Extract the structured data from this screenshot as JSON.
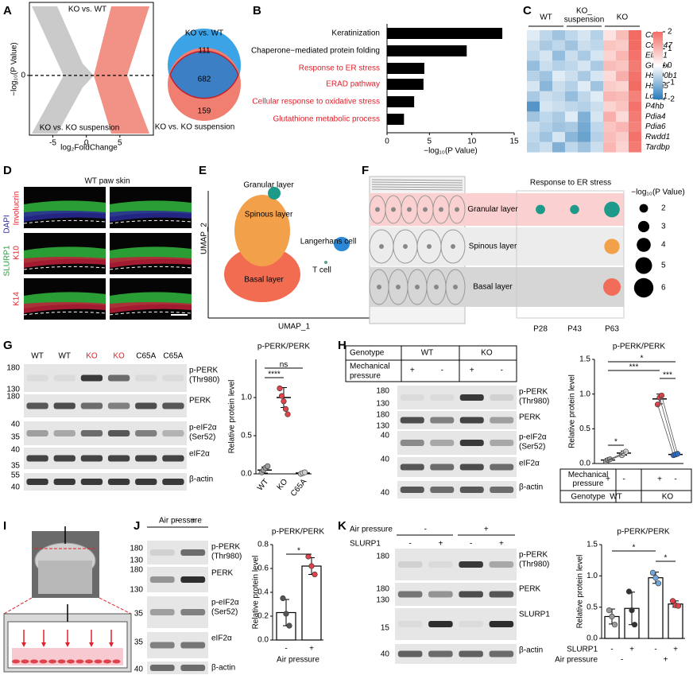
{
  "A": {
    "letter": "A",
    "volcano": {
      "type": "scatter",
      "title": "KO vs. WT",
      "subtitle": "KO vs. KO suspension",
      "x_label": "log₂FoldChange",
      "y_label": "−log₁₀(P Value)",
      "xlim": [
        -8.5,
        10
      ],
      "xticks": [
        -5,
        0,
        5
      ],
      "ylim": [
        -4.5,
        5.5
      ],
      "yticks": [
        0
      ],
      "colors": [
        "#bdbdbd",
        "#f07f72"
      ]
    },
    "venn": {
      "sets": [
        "KO vs. WT",
        "KO vs. KO suspension"
      ],
      "counts": [
        111,
        682,
        159
      ],
      "colors": [
        "#3ba3e6",
        "#f07f72",
        "#3d7fc4"
      ]
    }
  },
  "B": {
    "letter": "B",
    "chart": {
      "type": "bar",
      "categories": [
        "Keratinization",
        "Chaperone−mediated protein folding",
        "Response to ER stress",
        "ERAD pathway",
        "Cellular response to oxidative stress",
        "Glutathione metabolic process"
      ],
      "values": [
        13.6,
        9.4,
        4.4,
        4.3,
        3.2,
        2.0
      ],
      "label_colors": [
        "#000000",
        "#000000",
        "#e0202a",
        "#e0202a",
        "#e0202a",
        "#e0202a"
      ],
      "color": "#000000",
      "xlim": [
        0,
        15
      ],
      "xticks": [
        0,
        5,
        10,
        15
      ],
      "x_label": "−log₁₀(P Value)"
    }
  },
  "C": {
    "letter": "C",
    "heatmap": {
      "groups": [
        [
          "WT"
        ],
        [
          "KO_",
          "suspension"
        ],
        [
          "KO"
        ]
      ],
      "rows": [
        "Calr",
        "Ccdc47",
        "Eif2s1",
        "G6pdx",
        "Hsp90b1",
        "Hspa5",
        "Lonp1",
        "P4hb",
        "Pdia4",
        "Pdia6",
        "Rwdd1",
        "Tardbp"
      ],
      "values": [
        [
          -0.3,
          -0.6,
          -0.9,
          -0.6,
          -0.4,
          -0.7,
          0.4,
          0.9,
          2.0
        ],
        [
          -0.5,
          -0.8,
          -0.6,
          -0.9,
          -0.5,
          -0.6,
          0.8,
          0.7,
          2.0
        ],
        [
          -0.6,
          -0.4,
          -1.0,
          -0.5,
          -0.8,
          -0.4,
          0.6,
          1.0,
          1.9
        ],
        [
          -1.0,
          -0.5,
          -0.7,
          -0.6,
          -0.4,
          -0.8,
          0.9,
          0.8,
          1.8
        ],
        [
          -0.7,
          -0.9,
          -0.3,
          -0.5,
          -0.8,
          -0.4,
          0.5,
          1.1,
          1.9
        ],
        [
          -0.4,
          -1.1,
          -0.5,
          -0.7,
          -0.3,
          -0.9,
          0.7,
          0.6,
          2.0
        ],
        [
          -0.8,
          -0.5,
          -0.6,
          -1.0,
          -0.6,
          -0.3,
          1.0,
          0.9,
          1.7
        ],
        [
          -1.6,
          -0.4,
          -0.5,
          -0.6,
          -0.7,
          -0.5,
          0.6,
          0.8,
          1.9
        ],
        [
          -0.9,
          -0.6,
          -0.8,
          -0.3,
          -1.2,
          -0.4,
          1.1,
          0.5,
          1.8
        ],
        [
          -0.5,
          -0.7,
          -0.9,
          -0.8,
          -1.3,
          -0.6,
          0.8,
          1.0,
          1.7
        ],
        [
          -0.6,
          -0.9,
          -0.4,
          -1.1,
          -1.4,
          -0.7,
          0.9,
          0.7,
          1.9
        ],
        [
          -0.7,
          -0.5,
          -1.2,
          -0.6,
          -0.9,
          -0.5,
          1.0,
          0.6,
          1.8
        ]
      ],
      "colorbar": {
        "ticks": [
          2,
          1,
          0,
          -1,
          -2
        ],
        "colors": [
          "#2b7bba",
          "#ffffff",
          "#f26c64"
        ]
      }
    }
  },
  "D": {
    "letter": "D",
    "title": "WT paw skin",
    "stains": [
      "Involucrin",
      "K10",
      "K14"
    ],
    "channels": [
      "SLURP1",
      "DAPI"
    ]
  },
  "E": {
    "letter": "E",
    "clusters": [
      "Granular layer",
      "Spinous layer",
      "Langerhans cell",
      "T cell",
      "Basal layer"
    ],
    "x_label": "UMAP_1",
    "y_label": "UMAP_2"
  },
  "F": {
    "letter": "F",
    "chart": {
      "type": "dot",
      "title": "Response to ER stress",
      "rows": [
        "Granular layer",
        "Spinous layer",
        "Basal layer"
      ],
      "columns": [
        "P28",
        "P43",
        "P63"
      ],
      "values": [
        [
          2.3,
          2.2,
          4.6
        ],
        [
          null,
          null,
          4.5
        ],
        [
          null,
          null,
          5.3
        ]
      ],
      "row_colors": [
        "#1d9a8a",
        "#f2a04a",
        "#f26c5a"
      ],
      "size_legend": {
        "title": "−log₁₀(P Value)",
        "values": [
          2,
          3,
          4,
          5,
          6
        ]
      }
    }
  },
  "G": {
    "letter": "G",
    "blot": {
      "lanes": [
        "WT",
        "WT",
        "KO",
        "KO",
        "C65A",
        "C65A"
      ],
      "lane_colors": [
        "#000000",
        "#000000",
        "#e0202a",
        "#e0202a",
        "#000000",
        "#000000"
      ],
      "rows": [
        {
          "markers": [
            180,
            130
          ],
          "label": [
            "p-PERK",
            "(Thr980)"
          ]
        },
        {
          "markers": [
            180
          ],
          "label": [
            "PERK"
          ]
        },
        {
          "markers": [
            40,
            35
          ],
          "label": [
            "p-eIF2α",
            "(Ser52)"
          ]
        },
        {
          "markers": [
            40,
            35
          ],
          "label": [
            "eIF2α"
          ]
        },
        {
          "markers": [
            55,
            40
          ],
          "label": [
            "β-actin"
          ]
        }
      ]
    },
    "chart": {
      "type": "dot",
      "title": "p-PERK/PERK",
      "y_label": "Relative protein level",
      "ylim": [
        0,
        1.5
      ],
      "yticks": [
        {
          "value": 0,
          "label": "0.0"
        },
        0.5,
        {
          "value": 1,
          "label": "1.0"
        }
      ],
      "categories": [
        "WT",
        "KO",
        "C65A"
      ],
      "groups": [
        {
          "points": [
            0.02,
            0.05,
            0.08,
            0.1
          ],
          "mean": 0.05,
          "sd": 0.04,
          "color": "#9e9e9e"
        },
        {
          "points": [
            1.12,
            1.02,
            0.95,
            0.85,
            0.78
          ],
          "mean": 1.0,
          "sd": 0.13,
          "color": "#e0424a"
        },
        {
          "points": [
            0.0,
            0.01,
            0.02
          ],
          "mean": 0.01,
          "sd": 0.01,
          "color": "#cfcfcf"
        }
      ],
      "significance": [
        "ns",
        "****"
      ]
    }
  },
  "H": {
    "letter": "H",
    "blot": {
      "table": [
        {
          "label": [
            "Genotype"
          ],
          "cells": [
            "WT",
            "KO"
          ]
        },
        {
          "label": [
            "Mechanical",
            "pressure"
          ],
          "cells": [
            "+",
            "-",
            "+",
            "-"
          ]
        }
      ],
      "rows": [
        {
          "markers": [
            180,
            130
          ],
          "label": [
            "p-PERK",
            "(Thr980)"
          ]
        },
        {
          "markers": [
            180,
            130
          ],
          "label": [
            "PERK"
          ]
        },
        {
          "markers": [
            40
          ],
          "label": [
            "p-eIF2α",
            "(Ser52)"
          ]
        },
        {
          "markers": [
            40
          ],
          "label": [
            "eIF2α"
          ]
        },
        {
          "markers": [
            40
          ],
          "label": [
            "β-actin"
          ]
        }
      ]
    },
    "chart": {
      "type": "dot",
      "title": "p-PERK/PERK",
      "y_label": "Relative protein level",
      "ylim": [
        0,
        1.5
      ],
      "yticks": [
        {
          "value": 0,
          "label": "0.0"
        },
        0.5,
        {
          "value": 1,
          "label": "1.0"
        },
        1.5
      ],
      "x_table": [
        {
          "label": [
            "Mechanical",
            "pressure"
          ],
          "cells": [
            "+",
            "-",
            "+",
            "-"
          ]
        },
        {
          "label": [
            "Genotype"
          ],
          "cells": [
            "WT",
            "KO"
          ]
        }
      ],
      "groups": [
        {
          "points": [
            0.03,
            0.05,
            0.06
          ],
          "mean": 0.05,
          "sd": 0.02,
          "color": "#9e9e9e"
        },
        {
          "points": [
            0.12,
            0.15,
            0.17
          ],
          "mean": 0.15,
          "sd": 0.03,
          "color": "#d0d0d0"
        },
        {
          "points": [
            0.85,
            0.95,
            0.98
          ],
          "mean": 0.93,
          "sd": 0.07,
          "color": "#e0424a"
        },
        {
          "points": [
            0.12,
            0.13,
            0.14
          ],
          "mean": 0.13,
          "sd": 0.01,
          "color": "#2b6fd0"
        }
      ],
      "significance": [
        "*",
        "***",
        "*",
        "***"
      ]
    }
  },
  "I": {
    "letter": "I"
  },
  "J": {
    "letter": "J",
    "blot": {
      "conditions": [
        {
          "label": [
            "Air pressure"
          ],
          "cells": [
            "-",
            "+"
          ]
        }
      ],
      "rows": [
        {
          "markers": [
            180,
            130
          ],
          "label": [
            "p-PERK",
            "(Thr980)"
          ]
        },
        {
          "markers": [
            180,
            130
          ],
          "label": [
            "PERK"
          ]
        },
        {
          "markers": [
            35
          ],
          "label": [
            "p-eIF2α",
            "(Ser52)"
          ]
        },
        {
          "markers": [
            35
          ],
          "label": [
            "eIF2α"
          ]
        },
        {
          "markers": [
            40
          ],
          "label": [
            "β-actin"
          ]
        }
      ]
    },
    "chart": {
      "type": "bar",
      "title": "p-PERK/PERK",
      "y_label": "Relative protein level",
      "ylim": [
        0,
        0.8
      ],
      "yticks": [
        {
          "value": 0,
          "label": "0.0"
        },
        0.2,
        0.4,
        0.6,
        0.8
      ],
      "categories": [
        "-",
        "+"
      ],
      "x_label": "Air pressure",
      "groups": [
        {
          "points": [
            0.35,
            0.22,
            0.12
          ],
          "mean": 0.23,
          "sd": 0.11,
          "color": "#555555"
        },
        {
          "points": [
            0.7,
            0.62,
            0.55
          ],
          "mean": 0.62,
          "sd": 0.07,
          "color": "#e0424a"
        }
      ],
      "significance": [
        "*"
      ]
    }
  },
  "K": {
    "letter": "K",
    "blot": {
      "conditions": [
        {
          "label": [
            "Air pressure"
          ],
          "cells": [
            "-",
            "+"
          ]
        },
        {
          "label": [
            "SLURP1"
          ],
          "cells": [
            "-",
            "+",
            "-",
            "+"
          ]
        }
      ],
      "rows": [
        {
          "markers": [
            180
          ],
          "label": [
            "p-PERK",
            "(Thr980)"
          ]
        },
        {
          "markers": [
            180,
            130
          ],
          "label": [
            "PERK"
          ]
        },
        {
          "markers": [
            15
          ],
          "label": [
            "SLURP1"
          ]
        },
        {
          "markers": [
            40
          ],
          "label": [
            "β-actin"
          ]
        }
      ]
    },
    "chart": {
      "type": "bar",
      "title": "p-PERK/PERK",
      "y_label": "Relative protein level",
      "ylim": [
        0,
        1.5
      ],
      "yticks": [
        {
          "value": 0,
          "label": "0.0"
        },
        0.5,
        {
          "value": 1,
          "label": "1.0"
        },
        1.5
      ],
      "x_table": [
        {
          "label": [
            "SLURP1"
          ],
          "cells": [
            "-",
            "+",
            "-",
            "+"
          ]
        },
        {
          "label": [
            "Air pressure"
          ],
          "cells": [
            "-",
            "+"
          ]
        }
      ],
      "groups": [
        {
          "points": [
            0.45,
            0.35,
            0.22
          ],
          "mean": 0.35,
          "sd": 0.12,
          "color": "#9a9a9a"
        },
        {
          "points": [
            0.75,
            0.45,
            0.22
          ],
          "mean": 0.48,
          "sd": 0.26,
          "color": "#333333"
        },
        {
          "points": [
            1.05,
            0.97,
            0.88
          ],
          "mean": 0.97,
          "sd": 0.09,
          "color": "#6fa8dc"
        },
        {
          "points": [
            0.6,
            0.53,
            0.52
          ],
          "mean": 0.55,
          "sd": 0.05,
          "color": "#e0424a"
        }
      ],
      "significance": [
        "*",
        "*"
      ]
    }
  }
}
